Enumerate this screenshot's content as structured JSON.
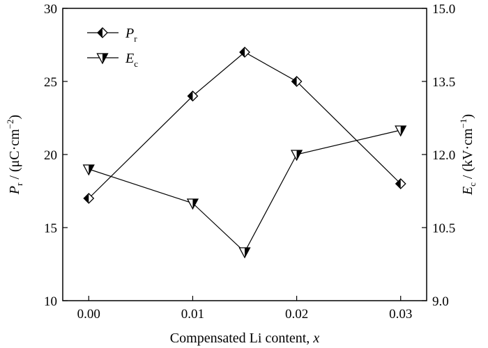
{
  "chart_data": {
    "type": "line",
    "x": [
      0.0,
      0.01,
      0.015,
      0.02,
      0.03
    ],
    "xlabel": {
      "text": "Compensated Li content, ",
      "var": "x"
    },
    "xlim": [
      -0.0025,
      0.0325
    ],
    "xticks": [
      0.0,
      0.01,
      0.02,
      0.03
    ],
    "xtick_labels": [
      "0.00",
      "0.01",
      "0.02",
      "0.03"
    ],
    "ylabel_left": {
      "sym": "P",
      "sub": "r",
      "unit_pre": " / (μC·cm",
      "unit_sup": "−2",
      "unit_post": ")"
    },
    "ylim_left": [
      10,
      30
    ],
    "yticks_left": [
      "10",
      "15",
      "20",
      "25",
      "30"
    ],
    "ylabel_right": {
      "sym": "E",
      "sub": "c",
      "unit_pre": " / (kV·cm",
      "unit_sup": "−1",
      "unit_post": ")"
    },
    "ylim_right": [
      9.0,
      15.0
    ],
    "yticks_right": [
      "9.0",
      "10.5",
      "12.0",
      "13.5",
      "15.0"
    ],
    "grid": false,
    "legend_position": "top-left",
    "series": [
      {
        "name": "P",
        "name_sub": "r",
        "axis": "left",
        "marker": "diamond",
        "values": [
          17,
          24,
          27,
          25,
          18
        ]
      },
      {
        "name": "E",
        "name_sub": "c",
        "axis": "right",
        "marker": "triangle-down",
        "values": [
          11.7,
          11.0,
          10.0,
          12.0,
          12.5
        ]
      }
    ],
    "colors": {
      "line": "#000000",
      "marker_fill": "#000000",
      "background": "#ffffff"
    }
  }
}
